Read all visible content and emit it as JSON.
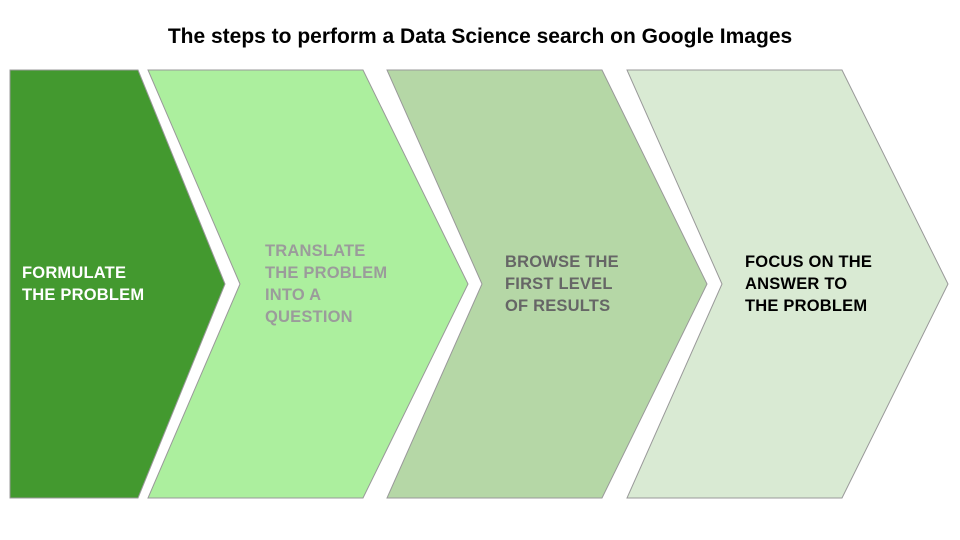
{
  "title": "The steps to perform a Data Science search on Google Images",
  "steps": [
    {
      "label": "FORMULATE\nTHE PROBLEM",
      "fill": "#43992f",
      "text_color": "#ffffff"
    },
    {
      "label": "TRANSLATE\nTHE PROBLEM\nINTO A\nQUESTION",
      "fill": "#acef9e",
      "text_color": "#9b9b9b"
    },
    {
      "label": "BROWSE THE\nFIRST LEVEL\nOF RESULTS",
      "fill": "#b5d7a6",
      "text_color": "#666666"
    },
    {
      "label": "FOCUS ON THE\nANSWER TO\nTHE PROBLEM",
      "fill": "#d9ead3",
      "text_color": "#000000"
    }
  ]
}
